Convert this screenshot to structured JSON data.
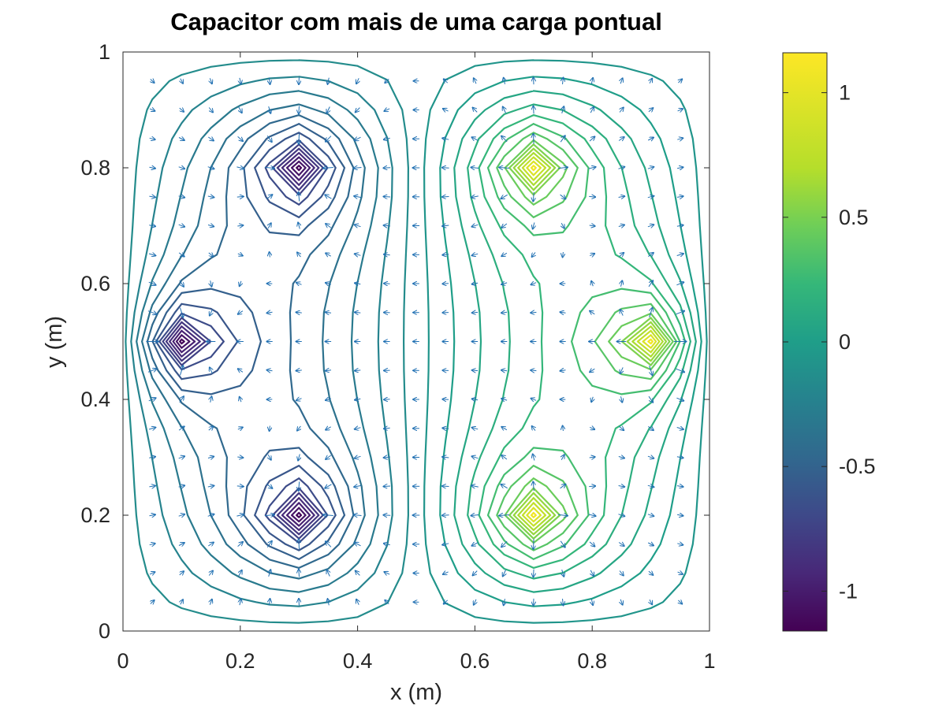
{
  "chart_data": {
    "type": "contour",
    "title": "Capacitor com mais de uma carga pontual",
    "xlabel": "x (m)",
    "ylabel": "y (m)",
    "xlim": [
      0,
      1
    ],
    "ylim": [
      0,
      1
    ],
    "xticks": [
      0,
      0.2,
      0.4,
      0.6,
      0.8,
      1
    ],
    "yticks": [
      0,
      0.2,
      0.4,
      0.6,
      0.8,
      1
    ],
    "xtick_labels": [
      "0",
      "0.2",
      "0.4",
      "0.6",
      "0.8",
      "1"
    ],
    "ytick_labels": [
      "0",
      "0.2",
      "0.4",
      "0.6",
      "0.8",
      "1"
    ],
    "colormap": "viridis",
    "colorbar": {
      "limits": [
        -1.16,
        1.16
      ],
      "ticks": [
        -1,
        -0.5,
        0,
        0.5,
        1
      ],
      "tick_labels": [
        "-1",
        "-0.5",
        "0",
        "0.5",
        "1"
      ]
    },
    "contour_levels": 28,
    "charges": [
      {
        "x": 0.1,
        "y": 0.5,
        "sign": -1
      },
      {
        "x": 0.3,
        "y": 0.2,
        "sign": -1
      },
      {
        "x": 0.3,
        "y": 0.8,
        "sign": -1
      },
      {
        "x": 0.7,
        "y": 0.2,
        "sign": 1
      },
      {
        "x": 0.7,
        "y": 0.8,
        "sign": 1
      },
      {
        "x": 0.9,
        "y": 0.5,
        "sign": 1
      }
    ],
    "boundary_potential": 0,
    "quiver": {
      "color": "#1f6fb2",
      "grid_step": 0.05
    },
    "grid": false
  }
}
